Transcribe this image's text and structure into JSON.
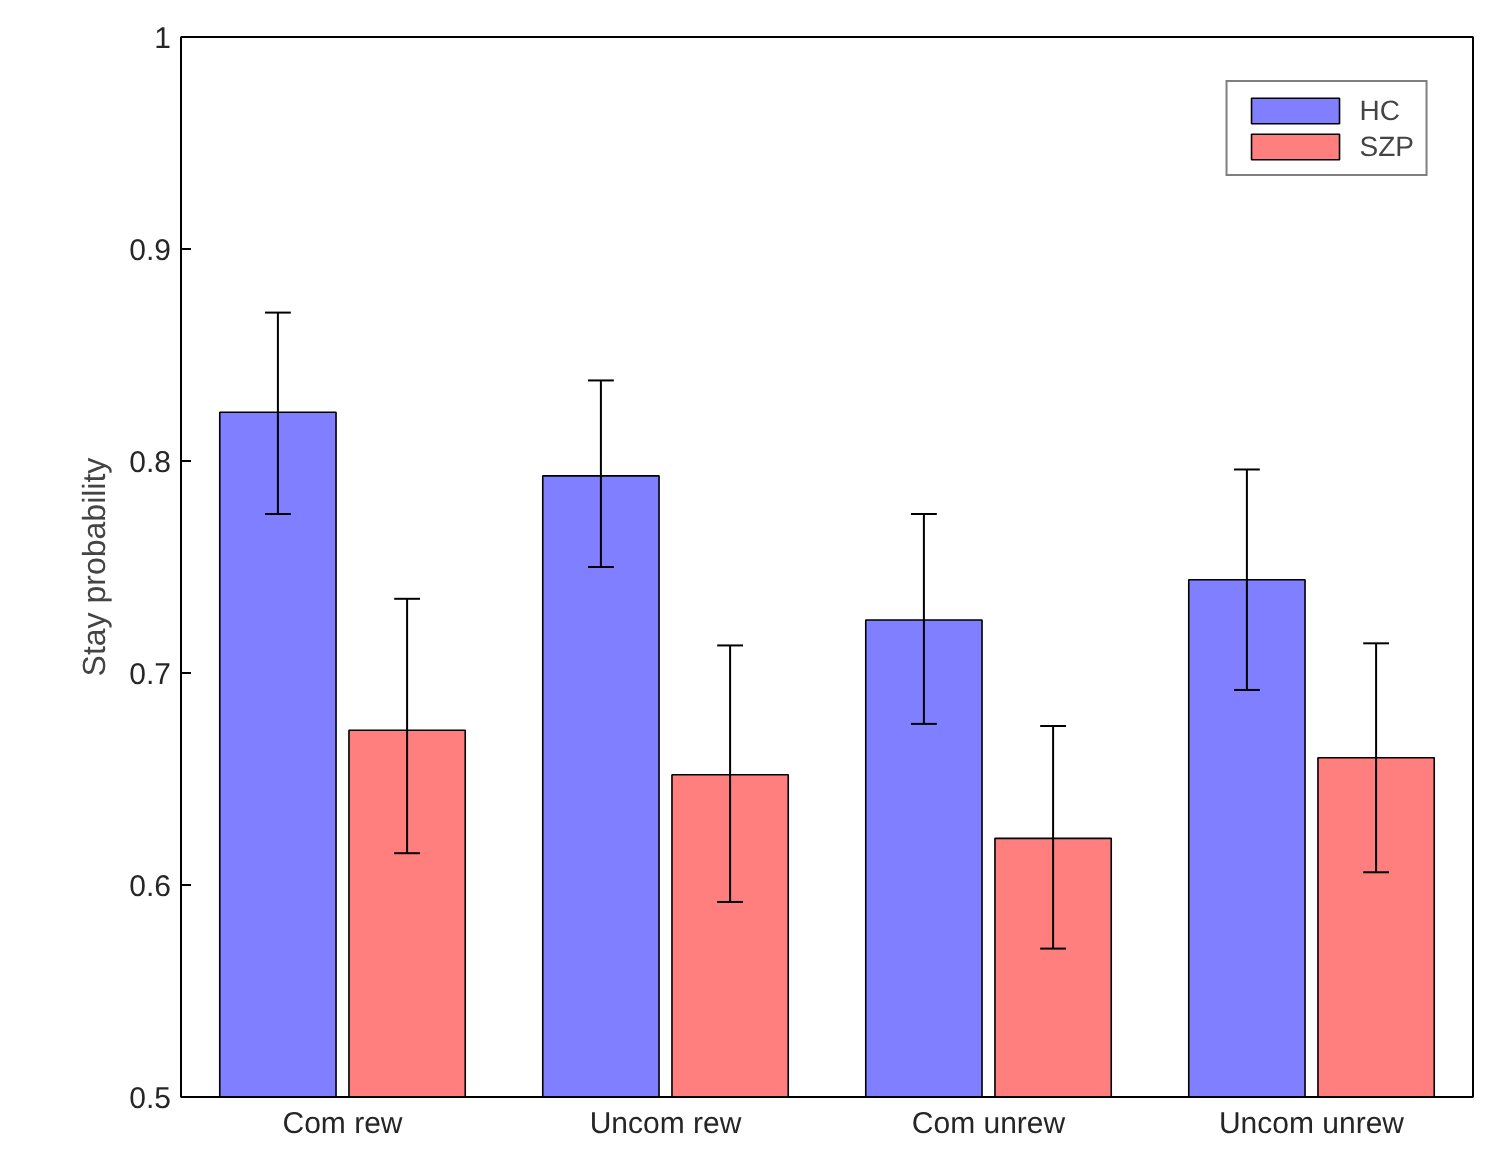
{
  "chart_data": {
    "type": "bar",
    "ylabel": "Stay probability",
    "categories": [
      "Com rew",
      "Uncom rew",
      "Com unrew",
      "Uncom unrew"
    ],
    "series": [
      {
        "name": "HC",
        "color": "#7f7fff",
        "values": [
          0.823,
          0.793,
          0.725,
          0.744
        ],
        "errors": [
          [
            0.775,
            0.87
          ],
          [
            0.75,
            0.838
          ],
          [
            0.676,
            0.775
          ],
          [
            0.692,
            0.796
          ]
        ]
      },
      {
        "name": "SZP",
        "color": "#ff7f7f",
        "values": [
          0.673,
          0.652,
          0.622,
          0.66
        ],
        "errors": [
          [
            0.615,
            0.735
          ],
          [
            0.592,
            0.713
          ],
          [
            0.57,
            0.675
          ],
          [
            0.606,
            0.714
          ]
        ]
      }
    ],
    "ylim": [
      0.5,
      1
    ],
    "yticks": [
      0.5,
      0.6,
      0.7,
      0.8,
      0.9,
      1
    ],
    "grid": false,
    "legend": "top right"
  }
}
